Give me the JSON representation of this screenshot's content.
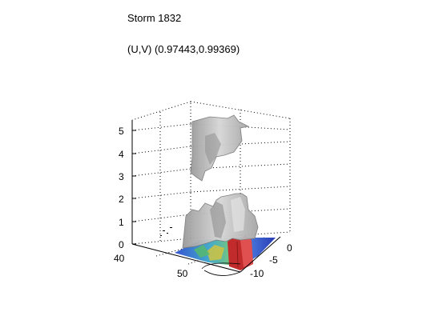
{
  "header": {
    "title": "Storm 1832",
    "subtitle": "(U,V) (0.97443,0.99369)"
  },
  "chart_data": {
    "type": "3d-isosurface",
    "title": "Storm 1832",
    "subtitle": "(U,V) (0.97443,0.99369)",
    "axes": {
      "z": {
        "ticks": [
          "0",
          "1",
          "2",
          "3",
          "4",
          "5"
        ],
        "range": [
          0,
          5.5
        ]
      },
      "x": {
        "ticks": [
          "40",
          "50"
        ]
      },
      "y": {
        "ticks": [
          "0",
          "-5",
          "-10"
        ]
      }
    },
    "grid": true,
    "surface_color": "#b8b8b8",
    "base_colormap": [
      "#1f3fbf",
      "#2aa0c8",
      "#5fc37a",
      "#e8d13a",
      "#d9402a"
    ]
  }
}
